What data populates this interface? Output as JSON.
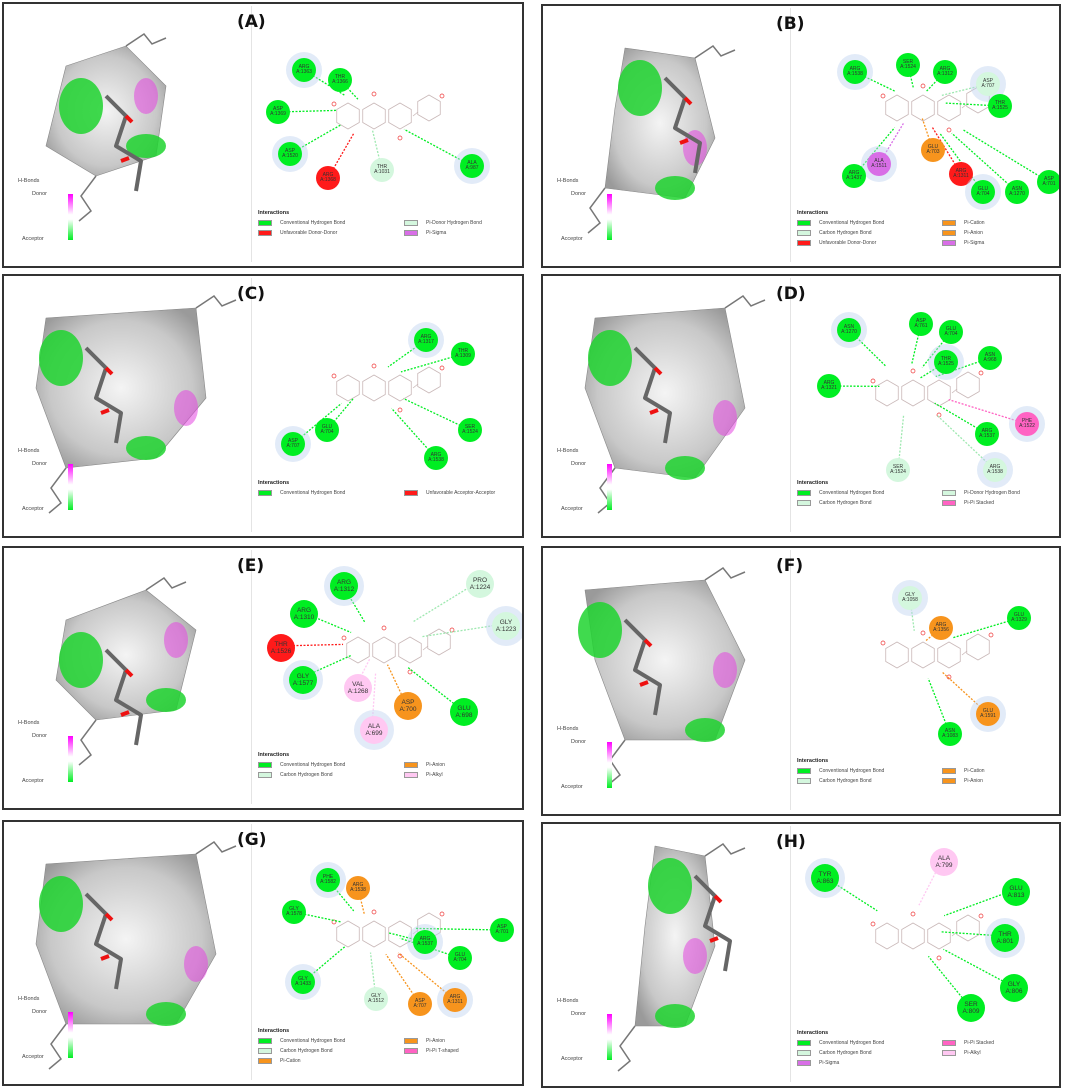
{
  "figure": {
    "hbond_legend": {
      "title": "H-Bonds",
      "donor": "Donor",
      "acceptor": "Acceptor"
    },
    "interactions_title": "Interactions",
    "colors": {
      "conventional_hbond": "#00ee22",
      "carbon_hbond": "#d4f7de",
      "pi_donor_hbond": "#d4f7de",
      "unfavorable": "#ff1a1a",
      "pi_cation": "#f7941d",
      "pi_anion": "#f7941d",
      "pi_sigma": "#d86ee6",
      "pi_pi_stacked": "#ff63c3",
      "pi_pi_tshaped": "#ff63c3",
      "pi_alkyl": "#ffc8f2"
    },
    "panels": [
      {
        "label": "(A)",
        "residues": [
          {
            "name": "ARG",
            "id": "A:1363",
            "type": "conventional"
          },
          {
            "name": "THR",
            "id": "A:1366",
            "type": "conventional"
          },
          {
            "name": "ASP",
            "id": "A:1369",
            "type": "conventional"
          },
          {
            "name": "ASP",
            "id": "A:1520",
            "type": "conventional"
          },
          {
            "name": "ARG",
            "id": "A:1368",
            "type": "unfavorable"
          },
          {
            "name": "THR",
            "id": "A:1031",
            "type": "pi_donor"
          },
          {
            "name": "ALA",
            "id": "A:987",
            "type": "conventional"
          }
        ],
        "legend": [
          {
            "label": "Conventional Hydrogen Bond",
            "color": "#00ee22"
          },
          {
            "label": "Pi-Donor Hydrogen Bond",
            "color": "#d4f7de"
          },
          {
            "label": "Unfavorable Donor-Donor",
            "color": "#ff1a1a"
          },
          {
            "label": "Pi-Sigma",
            "color": "#d86ee6"
          }
        ]
      },
      {
        "label": "(B)",
        "residues": [
          {
            "name": "ARG",
            "id": "A:1538",
            "type": "conventional"
          },
          {
            "name": "SER",
            "id": "A:1524",
            "type": "conventional"
          },
          {
            "name": "ARG",
            "id": "A:1312",
            "type": "conventional"
          },
          {
            "name": "ASP",
            "id": "A:707",
            "type": "carbon"
          },
          {
            "name": "THR",
            "id": "A:1525",
            "type": "conventional"
          },
          {
            "name": "GLU",
            "id": "A:703",
            "type": "pi_anion"
          },
          {
            "name": "ALA",
            "id": "A:1511",
            "type": "pi_sigma"
          },
          {
            "name": "ARG",
            "id": "A:1437",
            "type": "conventional"
          },
          {
            "name": "ARG",
            "id": "A:1311",
            "type": "unfavorable"
          },
          {
            "name": "GLU",
            "id": "A:704",
            "type": "conventional"
          },
          {
            "name": "ASN",
            "id": "A:1270",
            "type": "conventional"
          },
          {
            "name": "ASP",
            "id": "A:701",
            "type": "conventional"
          }
        ],
        "legend": [
          {
            "label": "Conventional Hydrogen Bond",
            "color": "#00ee22"
          },
          {
            "label": "Pi-Cation",
            "color": "#f7941d"
          },
          {
            "label": "Carbon Hydrogen Bond",
            "color": "#d4f7de"
          },
          {
            "label": "Pi-Anion",
            "color": "#f7941d"
          },
          {
            "label": "Unfavorable Donor-Donor",
            "color": "#ff1a1a"
          },
          {
            "label": "Pi-Sigma",
            "color": "#d86ee6"
          }
        ]
      },
      {
        "label": "(C)",
        "residues": [
          {
            "name": "ARG",
            "id": "A:1317",
            "type": "conventional"
          },
          {
            "name": "THR",
            "id": "A:1309",
            "type": "conventional"
          },
          {
            "name": "GLU",
            "id": "A:704",
            "type": "conventional"
          },
          {
            "name": "ASP",
            "id": "A:707",
            "type": "conventional"
          },
          {
            "name": "SER",
            "id": "A:1524",
            "type": "conventional"
          },
          {
            "name": "ARG",
            "id": "A:1538",
            "type": "conventional"
          }
        ],
        "legend": [
          {
            "label": "Conventional Hydrogen Bond",
            "color": "#00ee22"
          },
          {
            "label": "Unfavorable Acceptor-Acceptor",
            "color": "#ff1a1a"
          }
        ]
      },
      {
        "label": "(D)",
        "residues": [
          {
            "name": "ASN",
            "id": "A:1270",
            "type": "conventional"
          },
          {
            "name": "ASP",
            "id": "A:761",
            "type": "conventional"
          },
          {
            "name": "GLU",
            "id": "A:704",
            "type": "conventional"
          },
          {
            "name": "THR",
            "id": "A:1525",
            "type": "conventional"
          },
          {
            "name": "ASN",
            "id": "A:968",
            "type": "conventional"
          },
          {
            "name": "ARG",
            "id": "A:1321",
            "type": "conventional"
          },
          {
            "name": "PHE",
            "id": "A:1522",
            "type": "pi_pi_stacked"
          },
          {
            "name": "ARG",
            "id": "A:1537",
            "type": "conventional"
          },
          {
            "name": "SER",
            "id": "A:1524",
            "type": "carbon"
          },
          {
            "name": "ARG",
            "id": "A:1538",
            "type": "carbon"
          }
        ],
        "legend": [
          {
            "label": "Conventional Hydrogen Bond",
            "color": "#00ee22"
          },
          {
            "label": "Pi-Donor Hydrogen Bond",
            "color": "#d4f7de"
          },
          {
            "label": "Carbon Hydrogen Bond",
            "color": "#d4f7de"
          },
          {
            "label": "Pi-Pi Stacked",
            "color": "#ff63c3"
          }
        ]
      },
      {
        "label": "(E)",
        "residues": [
          {
            "name": "ARG",
            "id": "A:1312",
            "type": "conventional"
          },
          {
            "name": "ARG",
            "id": "A:1310",
            "type": "conventional"
          },
          {
            "name": "THR",
            "id": "A:1526",
            "type": "unfavorable"
          },
          {
            "name": "GLY",
            "id": "A:1577",
            "type": "conventional"
          },
          {
            "name": "VAL",
            "id": "A:1268",
            "type": "pi_alkyl"
          },
          {
            "name": "ASP",
            "id": "A:700",
            "type": "pi_anion"
          },
          {
            "name": "ALA",
            "id": "A:699",
            "type": "pi_alkyl"
          },
          {
            "name": "GLU",
            "id": "A:698",
            "type": "conventional"
          },
          {
            "name": "PRO",
            "id": "A:1224",
            "type": "carbon"
          },
          {
            "name": "GLY",
            "id": "A:1223",
            "type": "carbon"
          }
        ],
        "legend": [
          {
            "label": "Conventional Hydrogen Bond",
            "color": "#00ee22"
          },
          {
            "label": "Pi-Anion",
            "color": "#f7941d"
          },
          {
            "label": "Carbon Hydrogen Bond",
            "color": "#d4f7de"
          },
          {
            "label": "Pi-Alkyl",
            "color": "#ffc8f2"
          }
        ]
      },
      {
        "label": "(F)",
        "residues": [
          {
            "name": "GLY",
            "id": "A:1058",
            "type": "carbon"
          },
          {
            "name": "ARG",
            "id": "A:1356",
            "type": "pi_cation"
          },
          {
            "name": "GLU",
            "id": "A:1329",
            "type": "conventional"
          },
          {
            "name": "GLU",
            "id": "A:1591",
            "type": "pi_anion"
          },
          {
            "name": "ASN",
            "id": "A:1083",
            "type": "conventional"
          }
        ],
        "legend": [
          {
            "label": "Conventional Hydrogen Bond",
            "color": "#00ee22"
          },
          {
            "label": "Pi-Cation",
            "color": "#f7941d"
          },
          {
            "label": "Carbon Hydrogen Bond",
            "color": "#d4f7de"
          },
          {
            "label": "Pi-Anion",
            "color": "#f7941d"
          }
        ]
      },
      {
        "label": "(G)",
        "residues": [
          {
            "name": "PHE",
            "id": "A:1582",
            "type": "conventional"
          },
          {
            "name": "ARG",
            "id": "A:1538",
            "type": "pi_cation"
          },
          {
            "name": "GLY",
            "id": "A:1578",
            "type": "conventional"
          },
          {
            "name": "ARG",
            "id": "A:1537",
            "type": "conventional"
          },
          {
            "name": "GLU",
            "id": "A:704",
            "type": "conventional"
          },
          {
            "name": "ASP",
            "id": "A:701",
            "type": "conventional"
          },
          {
            "name": "GLY",
            "id": "A:1433",
            "type": "conventional"
          },
          {
            "name": "GLY",
            "id": "A:1512",
            "type": "carbon"
          },
          {
            "name": "ASP",
            "id": "A:707",
            "type": "pi_anion"
          },
          {
            "name": "ARG",
            "id": "A:1311",
            "type": "pi_cation"
          }
        ],
        "legend": [
          {
            "label": "Conventional Hydrogen Bond",
            "color": "#00ee22"
          },
          {
            "label": "Pi-Anion",
            "color": "#f7941d"
          },
          {
            "label": "Carbon Hydrogen Bond",
            "color": "#d4f7de"
          },
          {
            "label": "Pi-Pi T-shaped",
            "color": "#ff63c3"
          },
          {
            "label": "Pi-Cation",
            "color": "#f7941d"
          }
        ]
      },
      {
        "label": "(H)",
        "residues": [
          {
            "name": "TYR",
            "id": "A:863",
            "type": "conventional"
          },
          {
            "name": "ALA",
            "id": "A:799",
            "type": "pi_alkyl"
          },
          {
            "name": "GLU",
            "id": "A:813",
            "type": "conventional"
          },
          {
            "name": "THR",
            "id": "A:801",
            "type": "conventional"
          },
          {
            "name": "GLY",
            "id": "A:806",
            "type": "conventional"
          },
          {
            "name": "SER",
            "id": "A:809",
            "type": "conventional"
          }
        ],
        "legend": [
          {
            "label": "Conventional Hydrogen Bond",
            "color": "#00ee22"
          },
          {
            "label": "Pi-Pi Stacked",
            "color": "#ff63c3"
          },
          {
            "label": "Carbon Hydrogen Bond",
            "color": "#d4f7de"
          },
          {
            "label": "Pi-Alkyl",
            "color": "#ffc8f2"
          },
          {
            "label": "Pi-Sigma",
            "color": "#d86ee6"
          }
        ]
      }
    ]
  }
}
